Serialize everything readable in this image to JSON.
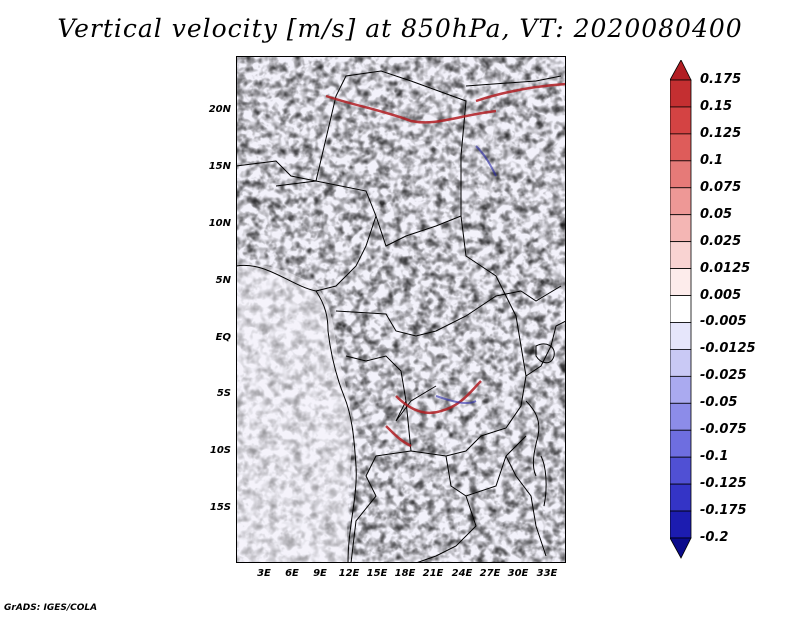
{
  "title": "Vertical velocity [m/s] at 850hPa, VT: 2020080400",
  "credit": "GrADS: IGES/COLA",
  "lat_labels": [
    "20N",
    "15N",
    "10N",
    "5N",
    "EQ",
    "5S",
    "10S",
    "15S"
  ],
  "lon_labels": [
    "3E",
    "6E",
    "9E",
    "12E",
    "15E",
    "18E",
    "21E",
    "24E",
    "27E",
    "30E",
    "33E"
  ],
  "colorbar": {
    "labels": [
      "0.175",
      "0.15",
      "0.125",
      "0.1",
      "0.075",
      "0.05",
      "0.025",
      "0.0125",
      "0.005",
      "-0.005",
      "-0.0125",
      "-0.025",
      "-0.05",
      "-0.075",
      "-0.1",
      "-0.125",
      "-0.175",
      "-0.2"
    ],
    "colors": [
      "#b21e23",
      "#c42f31",
      "#d44343",
      "#de5c5a",
      "#e67a78",
      "#ee9896",
      "#f4b6b4",
      "#f9d3d2",
      "#fdeceb",
      "#ffffff",
      "#e6e6fb",
      "#c9c9f5",
      "#aaaaf0",
      "#8c8ce9",
      "#6e6ee0",
      "#5050d4",
      "#3434c6",
      "#1c1cb0",
      "#0b0b8c"
    ]
  },
  "chart_data": {
    "type": "heatmap",
    "title": "Vertical velocity [m/s] at 850hPa, VT: 2020080400",
    "xlabel": "",
    "ylabel": "",
    "x_range": [
      "0E",
      "35E"
    ],
    "y_range": [
      "20S",
      "25N"
    ],
    "levels": [
      -0.2,
      -0.175,
      -0.125,
      -0.1,
      -0.075,
      -0.05,
      -0.025,
      -0.0125,
      -0.005,
      0.005,
      0.0125,
      0.025,
      0.05,
      0.075,
      0.1,
      0.125,
      0.15,
      0.175
    ]
  }
}
